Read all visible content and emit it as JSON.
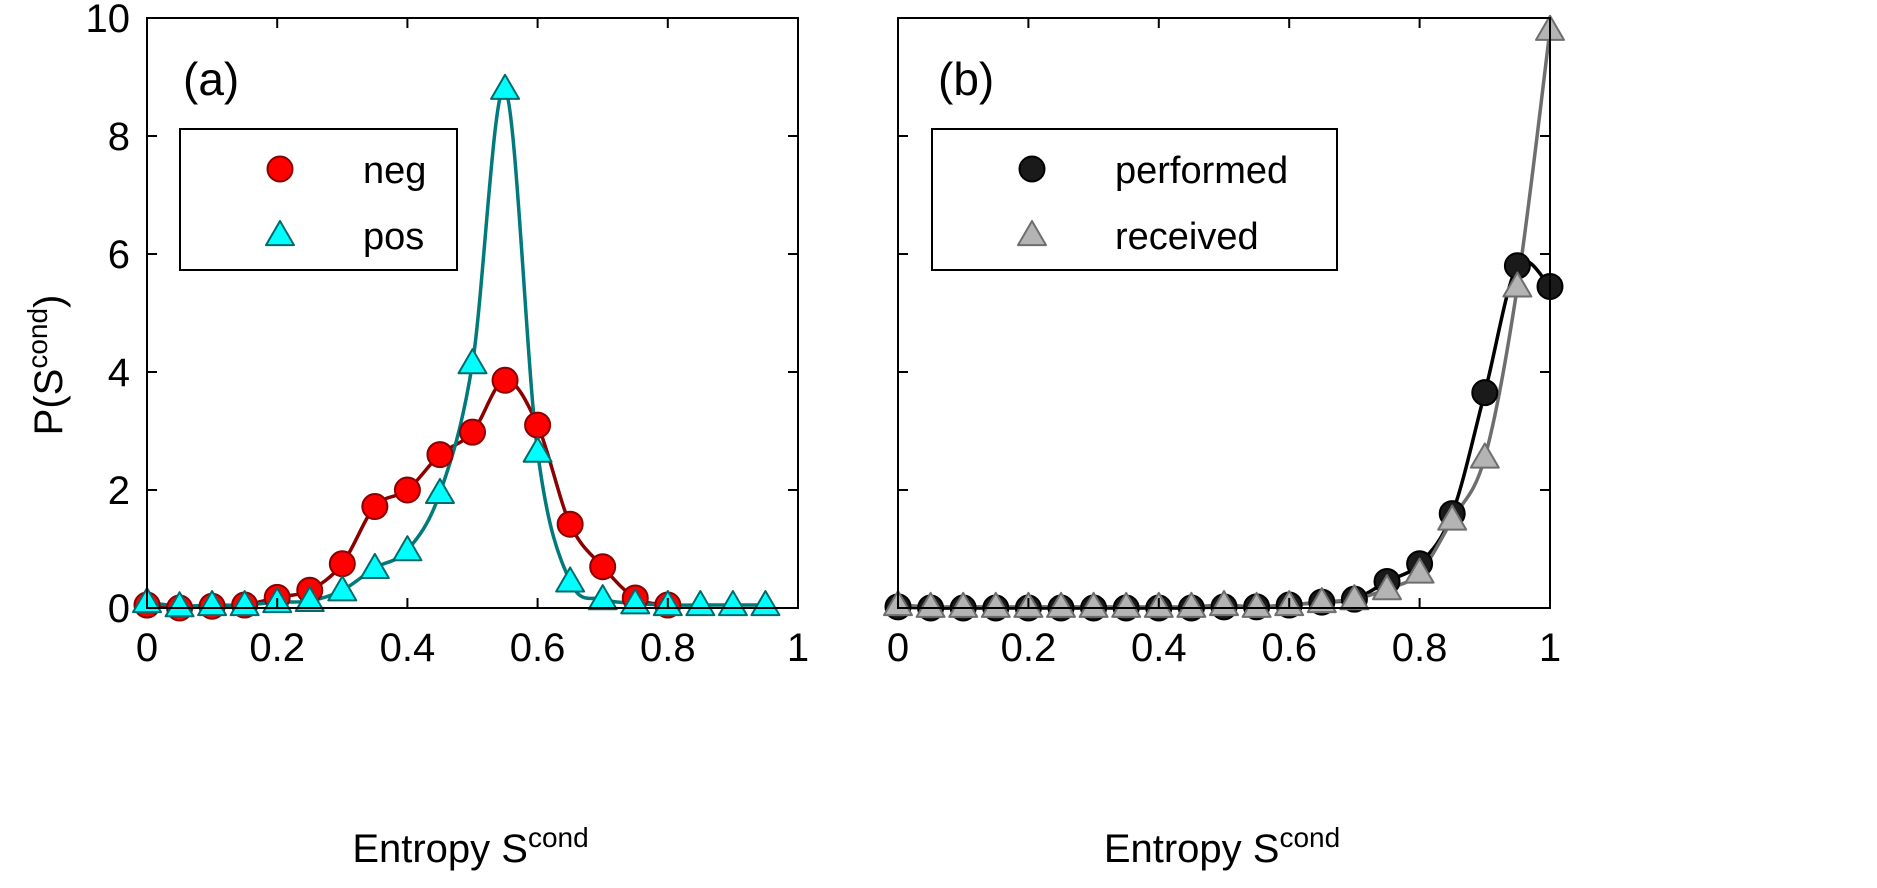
{
  "ylabel": {
    "base": "P(S",
    "sup": "cond",
    "close": ")"
  },
  "chart_data": [
    {
      "type": "line",
      "panel_label": "(a)",
      "xlabel": {
        "base": "Entropy S",
        "sup": "cond"
      },
      "xlim": [
        0,
        1
      ],
      "ylim": [
        0,
        10
      ],
      "xticks": [
        "0",
        "0.2",
        "0.4",
        "0.6",
        "0.8",
        "1"
      ],
      "yticks": [
        "0",
        "2",
        "4",
        "6",
        "8",
        "10"
      ],
      "legend_position": "upper-left",
      "grid": false,
      "series": [
        {
          "name": "neg",
          "marker": "circle",
          "marker_fill": "#ff0000",
          "marker_edge": "#8b0000",
          "line_color": "#8b0000",
          "x": [
            0,
            0.05,
            0.1,
            0.15,
            0.2,
            0.25,
            0.3,
            0.35,
            0.4,
            0.45,
            0.5,
            0.55,
            0.6,
            0.65,
            0.7,
            0.75,
            0.8
          ],
          "values": [
            0.05,
            0.0,
            0.03,
            0.05,
            0.18,
            0.3,
            0.75,
            1.72,
            2.0,
            2.6,
            2.98,
            3.86,
            3.1,
            1.42,
            0.7,
            0.17,
            0.05
          ]
        },
        {
          "name": "pos",
          "marker": "triangle",
          "marker_fill": "#00ffff",
          "marker_edge": "#006b6b",
          "line_color": "#007a7a",
          "x": [
            0,
            0.05,
            0.1,
            0.15,
            0.2,
            0.25,
            0.3,
            0.35,
            0.4,
            0.45,
            0.5,
            0.55,
            0.6,
            0.65,
            0.7,
            0.75,
            0.8,
            0.85,
            0.9,
            0.95
          ],
          "values": [
            0.1,
            0.03,
            0.05,
            0.05,
            0.1,
            0.12,
            0.3,
            0.68,
            0.98,
            1.95,
            4.15,
            8.8,
            2.65,
            0.45,
            0.15,
            0.08,
            0.05,
            0.05,
            0.05,
            0.05
          ]
        }
      ]
    },
    {
      "type": "line",
      "panel_label": "(b)",
      "xlabel": {
        "base": "Entropy S",
        "sup": "cond"
      },
      "xlim": [
        0,
        1
      ],
      "ylim": [
        0,
        10
      ],
      "xticks": [
        "0",
        "0.2",
        "0.4",
        "0.6",
        "0.8",
        "1"
      ],
      "yticks": [],
      "legend_position": "upper-left",
      "grid": false,
      "series": [
        {
          "name": "performed",
          "marker": "circle",
          "marker_fill": "#1a1a1a",
          "marker_edge": "#000000",
          "line_color": "#000000",
          "x": [
            0,
            0.05,
            0.1,
            0.15,
            0.2,
            0.25,
            0.3,
            0.35,
            0.4,
            0.45,
            0.5,
            0.55,
            0.6,
            0.65,
            0.7,
            0.75,
            0.8,
            0.85,
            0.9,
            0.95,
            1.0
          ],
          "values": [
            0.02,
            0.0,
            0.0,
            0.0,
            0.0,
            0.0,
            0.0,
            0.0,
            0.0,
            0.0,
            0.02,
            0.02,
            0.05,
            0.1,
            0.15,
            0.45,
            0.75,
            1.6,
            3.65,
            5.8,
            5.45
          ]
        },
        {
          "name": "received",
          "marker": "triangle",
          "marker_fill": "#b4b4b4",
          "marker_edge": "#6e6e6e",
          "line_color": "#6e6e6e",
          "x": [
            0,
            0.05,
            0.1,
            0.15,
            0.2,
            0.25,
            0.3,
            0.35,
            0.4,
            0.45,
            0.5,
            0.55,
            0.6,
            0.65,
            0.7,
            0.75,
            0.8,
            0.85,
            0.9,
            0.95,
            1.0
          ],
          "values": [
            0.05,
            0.02,
            0.02,
            0.02,
            0.02,
            0.02,
            0.02,
            0.02,
            0.02,
            0.02,
            0.05,
            0.02,
            0.05,
            0.1,
            0.15,
            0.32,
            0.6,
            1.5,
            2.55,
            5.45,
            9.8
          ]
        }
      ]
    }
  ]
}
